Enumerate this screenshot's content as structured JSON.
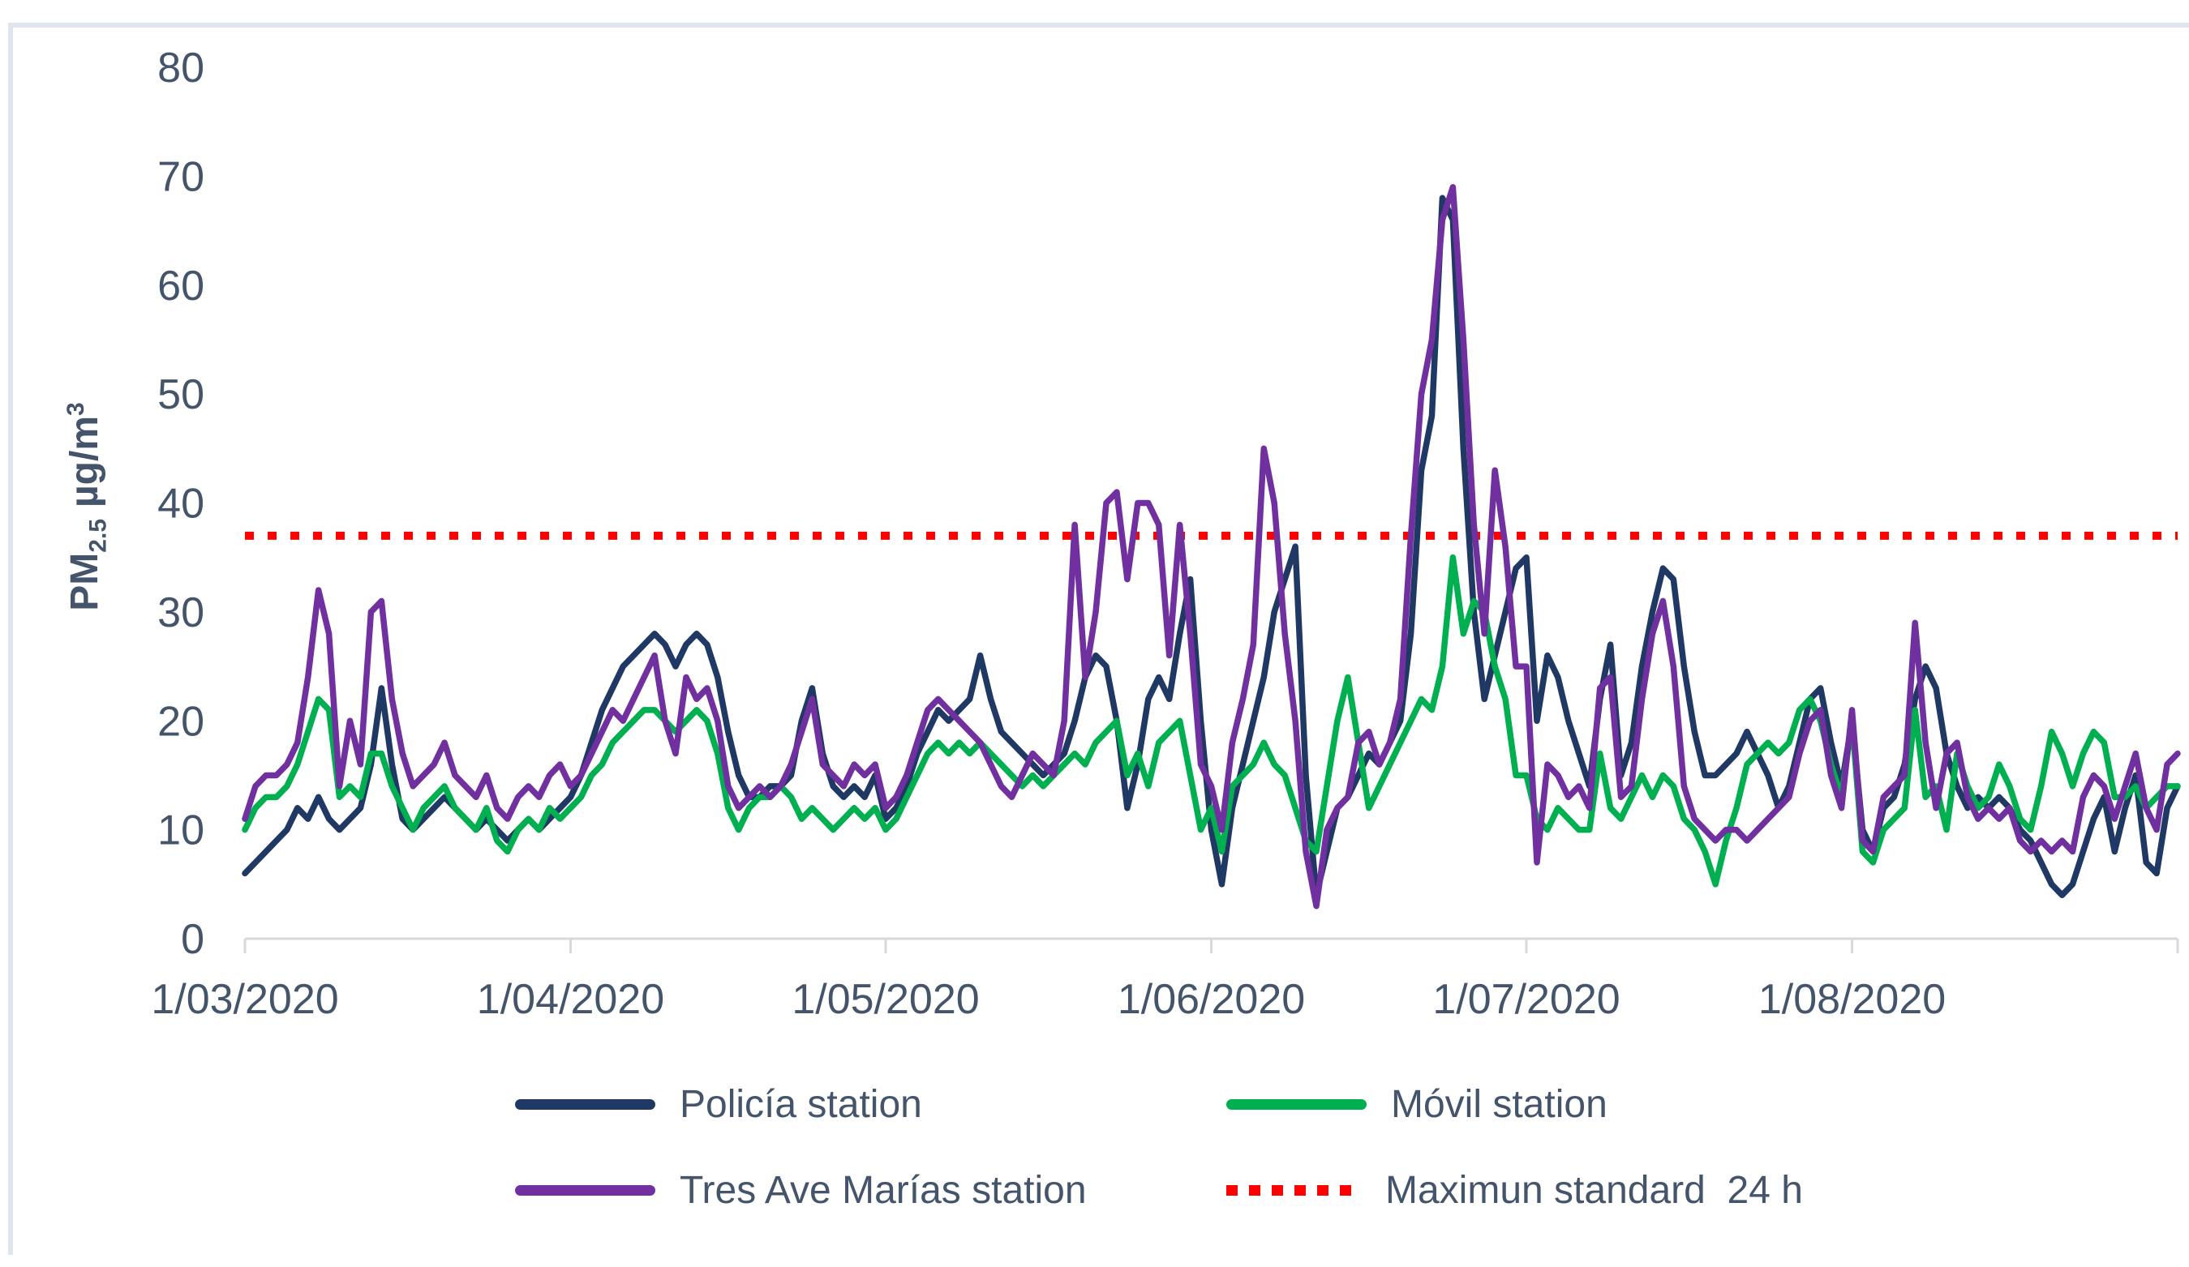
{
  "y_axis": {
    "title_pm": "PM",
    "title_sub": "2.5",
    "title_unit": "µg/m",
    "title_sup": "3"
  },
  "legend": {
    "items": [
      {
        "label": "Policía station",
        "color": "#1F3864",
        "style": "solid"
      },
      {
        "label": "Móvil station",
        "color": "#00B050",
        "style": "solid"
      },
      {
        "label": "Tres Ave Marías station",
        "color": "#7030A0",
        "style": "solid"
      },
      {
        "label": "Maximun standard  24 h",
        "color": "#FF0000",
        "style": "dotted"
      }
    ]
  },
  "chart_data": {
    "type": "line",
    "title": "",
    "xlabel": "",
    "ylabel": "PM2.5 µg/m³",
    "ylim": [
      0,
      80
    ],
    "y_ticks": [
      0,
      10,
      20,
      30,
      40,
      50,
      60,
      70,
      80
    ],
    "x_tick_labels": [
      "1/03/2020",
      "1/04/2020",
      "1/05/2020",
      "1/06/2020",
      "1/07/2020",
      "1/08/2020"
    ],
    "x_tick_days": [
      0,
      31,
      61,
      92,
      122,
      153,
      184
    ],
    "x_unit": "day index from 1/03/2020, daily samples",
    "grid": false,
    "legend_position": "bottom",
    "threshold": {
      "label": "Maximun standard  24 h",
      "value": 37,
      "color": "#FF0000"
    },
    "series": [
      {
        "name": "Policía station",
        "color": "#1F3864",
        "values": [
          6,
          7,
          8,
          9,
          10,
          12,
          11,
          13,
          11,
          10,
          11,
          12,
          16,
          23,
          16,
          11,
          10,
          11,
          12,
          13,
          12,
          11,
          10,
          11,
          10,
          9,
          10,
          11,
          10,
          11,
          12,
          13,
          15,
          18,
          21,
          23,
          25,
          26,
          27,
          28,
          27,
          25,
          27,
          28,
          27,
          24,
          19,
          15,
          13,
          13,
          14,
          14,
          15,
          20,
          23,
          17,
          14,
          13,
          14,
          13,
          15,
          11,
          12,
          14,
          17,
          19,
          21,
          20,
          21,
          22,
          26,
          22,
          19,
          18,
          17,
          16,
          15,
          16,
          17,
          20,
          24,
          26,
          25,
          20,
          12,
          16,
          22,
          24,
          22,
          28,
          33,
          20,
          10,
          5,
          12,
          16,
          20,
          24,
          30,
          33,
          36,
          15,
          4,
          8,
          12,
          13,
          15,
          17,
          16,
          18,
          20,
          28,
          43,
          48,
          68,
          66,
          45,
          30,
          22,
          26,
          30,
          34,
          35,
          20,
          26,
          24,
          20,
          17,
          14,
          22,
          27,
          15,
          18,
          25,
          30,
          34,
          33,
          25,
          19,
          15,
          15,
          16,
          17,
          19,
          17,
          15,
          12,
          14,
          18,
          22,
          23,
          18,
          14,
          20,
          10,
          8,
          12,
          13,
          16,
          22,
          25,
          23,
          17,
          14,
          12,
          13,
          12,
          13,
          12,
          10,
          9,
          7,
          5,
          4,
          5,
          8,
          11,
          13,
          8,
          12,
          15,
          7,
          6,
          12,
          14
        ]
      },
      {
        "name": "Móvil station",
        "color": "#00B050",
        "values": [
          10,
          12,
          13,
          13,
          14,
          16,
          19,
          22,
          21,
          13,
          14,
          13,
          17,
          17,
          14,
          12,
          10,
          12,
          13,
          14,
          12,
          11,
          10,
          12,
          9,
          8,
          10,
          11,
          10,
          12,
          11,
          12,
          13,
          15,
          16,
          18,
          19,
          20,
          21,
          21,
          20,
          19,
          20,
          21,
          20,
          17,
          12,
          10,
          12,
          13,
          13,
          14,
          13,
          11,
          12,
          11,
          10,
          11,
          12,
          11,
          12,
          10,
          11,
          13,
          15,
          17,
          18,
          17,
          18,
          17,
          18,
          17,
          16,
          15,
          14,
          15,
          14,
          15,
          16,
          17,
          16,
          18,
          19,
          20,
          15,
          17,
          14,
          18,
          19,
          20,
          15,
          10,
          12,
          8,
          14,
          15,
          16,
          18,
          16,
          15,
          12,
          9,
          8,
          14,
          20,
          24,
          18,
          12,
          14,
          16,
          18,
          20,
          22,
          21,
          25,
          35,
          28,
          31,
          30,
          25,
          22,
          15,
          15,
          11,
          10,
          12,
          11,
          10,
          10,
          17,
          12,
          11,
          13,
          15,
          13,
          15,
          14,
          11,
          10,
          8,
          5,
          9,
          12,
          16,
          17,
          18,
          17,
          18,
          21,
          22,
          20,
          16,
          13,
          20,
          8,
          7,
          10,
          11,
          12,
          21,
          13,
          14,
          10,
          17,
          14,
          12,
          13,
          16,
          14,
          11,
          10,
          14,
          19,
          17,
          14,
          17,
          19,
          18,
          13,
          13,
          14,
          12,
          13,
          14,
          14
        ]
      },
      {
        "name": "Tres Ave Marías station",
        "color": "#7030A0",
        "values": [
          11,
          14,
          15,
          15,
          16,
          18,
          24,
          32,
          28,
          14,
          20,
          16,
          30,
          31,
          22,
          17,
          14,
          15,
          16,
          18,
          15,
          14,
          13,
          15,
          12,
          11,
          13,
          14,
          13,
          15,
          16,
          14,
          15,
          17,
          19,
          21,
          20,
          22,
          24,
          26,
          20,
          17,
          24,
          22,
          23,
          20,
          14,
          12,
          13,
          14,
          13,
          14,
          16,
          19,
          22,
          16,
          15,
          14,
          16,
          15,
          16,
          12,
          13,
          15,
          18,
          21,
          22,
          21,
          20,
          19,
          18,
          16,
          14,
          13,
          15,
          17,
          16,
          15,
          20,
          38,
          24,
          30,
          40,
          41,
          33,
          40,
          40,
          38,
          26,
          38,
          28,
          16,
          14,
          10,
          18,
          22,
          27,
          45,
          40,
          28,
          20,
          8,
          3,
          10,
          12,
          13,
          18,
          19,
          16,
          18,
          22,
          37,
          50,
          55,
          66,
          69,
          55,
          38,
          28,
          43,
          36,
          25,
          25,
          7,
          16,
          15,
          13,
          14,
          12,
          23,
          24,
          13,
          14,
          22,
          28,
          31,
          25,
          14,
          11,
          10,
          9,
          10,
          10,
          9,
          10,
          11,
          12,
          13,
          17,
          20,
          21,
          15,
          12,
          21,
          9,
          8,
          13,
          14,
          15,
          29,
          18,
          12,
          17,
          18,
          13,
          11,
          12,
          11,
          12,
          9,
          8,
          9,
          8,
          9,
          8,
          13,
          15,
          14,
          11,
          14,
          17,
          12,
          10,
          16,
          17
        ]
      }
    ]
  }
}
